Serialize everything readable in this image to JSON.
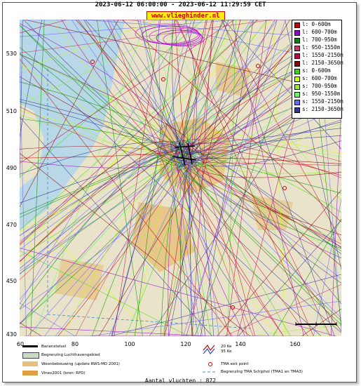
{
  "header": {
    "title": "2023-06-12 06:00:00 - 2023-06-12 11:29:59 CET",
    "site": "www.vlieghinder.nl"
  },
  "axes": {
    "y_ticks": [
      "530",
      "510",
      "490",
      "470",
      "450",
      "430"
    ],
    "x_ticks": [
      "60",
      "80",
      "100",
      "120",
      "140",
      "160"
    ]
  },
  "legend": {
    "items": [
      {
        "label": "l: 0-600m",
        "color": "#cc0000"
      },
      {
        "label": "l: 600-700m",
        "color": "#9900cc"
      },
      {
        "label": "l: 700-950m",
        "color": "#008800"
      },
      {
        "label": "l: 950-1550m",
        "color": "#cc3366"
      },
      {
        "label": "l: 1550-2150m",
        "color": "#cc0044"
      },
      {
        "label": "l: 2150-3650m",
        "color": "#880000"
      },
      {
        "label": "s: 0-600m",
        "color": "#33dd00"
      },
      {
        "label": "s: 600-700m",
        "color": "#ccff00"
      },
      {
        "label": "s: 700-950m",
        "color": "#99ee33"
      },
      {
        "label": "s: 950-1550m",
        "color": "#66ff66"
      },
      {
        "label": "s: 1550-2150m",
        "color": "#6666ff"
      },
      {
        "label": "s: 2150-3650m",
        "color": "#333399"
      }
    ]
  },
  "map_legend": {
    "runways": "Banenstelsel",
    "airport_boundary": "Begrenzing Luchthavengebied",
    "residential": "Woonbebouwing (update RWS-MD 2001)",
    "vinex": "Vinex2001 (bron: RPD)",
    "noise_35ke": "35 Ke",
    "noise_20ke": "20 Ke",
    "tma_exit": "TMA exit point",
    "tma_boundary": "Begrenzing TMA Schiphol  (TMA1 en TMA3)"
  },
  "footer": {
    "flight_count": "Aantal vluchten : 872"
  },
  "colors": {
    "sea": "#b8d8e8",
    "land": "#e9e4c9",
    "urban": "#e6c07a"
  }
}
